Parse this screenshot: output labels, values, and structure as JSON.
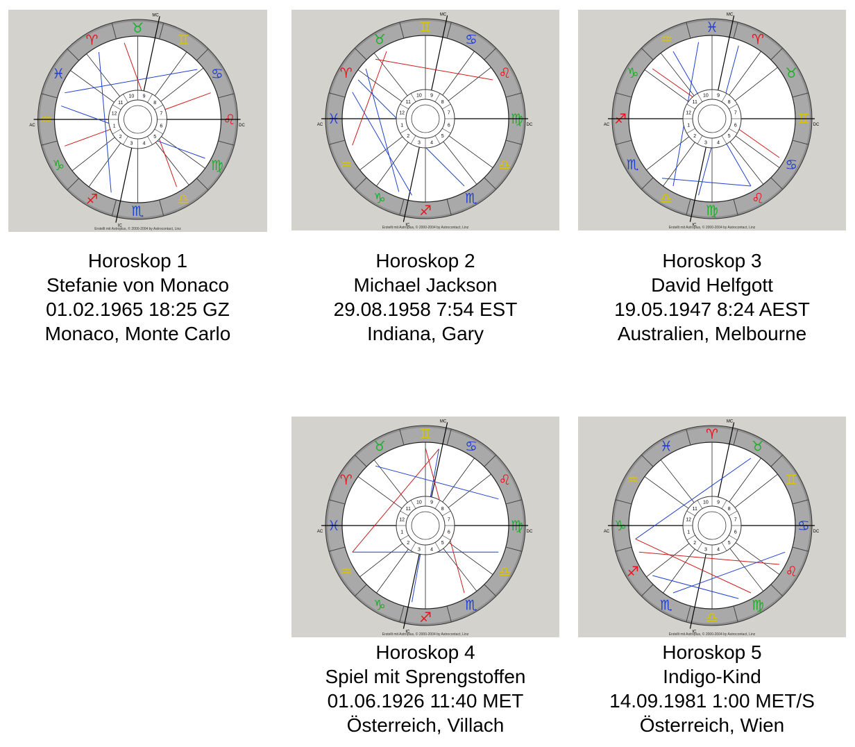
{
  "charts": [
    {
      "title": "Horoskop 1",
      "name": "Stefanie von Monaco",
      "datetime": "01.02.1965  18:25 GZ",
      "place": "Monaco, Monte Carlo",
      "signs": [
        "♒",
        "♓",
        "♈",
        "♉",
        "♊",
        "♋",
        "♌",
        "♍",
        "♎",
        "♏",
        "♐",
        "♑"
      ],
      "footer": "Erstellt mit Astroplus, © 2000-2004 by Astrocontact, Linz"
    },
    {
      "title": "Horoskop 2",
      "name": "Michael Jackson",
      "datetime": "29.08.1958  7:54 EST",
      "place": "Indiana, Gary",
      "signs": [
        "♓",
        "♈",
        "♉",
        "♊",
        "♋",
        "♌",
        "♍",
        "♎",
        "♏",
        "♐",
        "♑",
        "♒"
      ],
      "footer": "Erstellt mit Astroplus, © 2000-2004 by Astrocontact, Linz"
    },
    {
      "title": "Horoskop 3",
      "name": "David Helfgott",
      "datetime": "19.05.1947  8:24 AEST",
      "place": "Australien, Melbourne",
      "signs": [
        "♐",
        "♑",
        "♒",
        "♓",
        "♈",
        "♉",
        "♊",
        "♋",
        "♌",
        "♍",
        "♎",
        "♏"
      ],
      "footer": "Erstellt mit Astroplus, © 2000-2004 by Astrocontact, Linz"
    },
    {
      "title": "Horoskop 4",
      "name": "Spiel mit Sprengstoffen",
      "datetime": "01.06.1926  11:40 MET",
      "place": "Österreich, Villach",
      "signs": [
        "♓",
        "♈",
        "♉",
        "♊",
        "♋",
        "♌",
        "♍",
        "♎",
        "♏",
        "♐",
        "♑",
        "♒"
      ],
      "footer": "Erstellt mit Astroplus, © 2000-2004 by Astrocontact, Linz"
    },
    {
      "title": "Horoskop 5",
      "name": "Indigo-Kind",
      "datetime": "14.09.1981  1:00 MET/S",
      "place": "Österreich, Wien",
      "signs": [
        "♑",
        "♒",
        "♓",
        "♈",
        "♉",
        "♊",
        "♋",
        "♌",
        "♍",
        "♎",
        "♏",
        "♐"
      ],
      "footer": "Erstellt mit Astroplus, © 2000-2004 by Astrocontact, Linz"
    }
  ],
  "labels": {
    "mc": "MC",
    "ic": "IC",
    "ac": "AC",
    "dc": "DC"
  },
  "house_numbers": [
    "1",
    "2",
    "3",
    "4",
    "5",
    "6",
    "7",
    "8",
    "9",
    "10",
    "11",
    "12"
  ],
  "sign_colors": {
    "fire": "#e8141b",
    "earth": "#1fae2a",
    "air": "#d8c400",
    "water": "#1f3fd0"
  },
  "aspect_colors": {
    "hard": "#e0141b",
    "soft": "#1f3fd0"
  }
}
